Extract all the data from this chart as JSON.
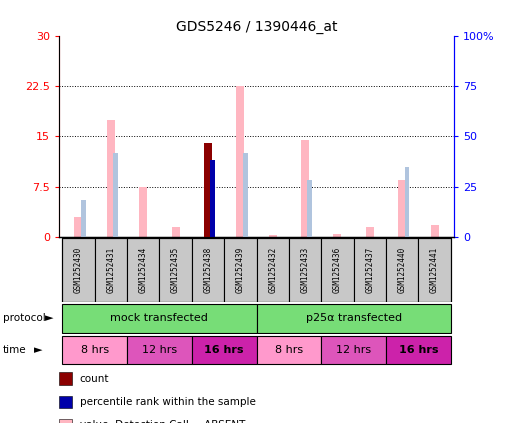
{
  "title": "GDS5246 / 1390446_at",
  "samples": [
    "GSM1252430",
    "GSM1252431",
    "GSM1252434",
    "GSM1252435",
    "GSM1252438",
    "GSM1252439",
    "GSM1252432",
    "GSM1252433",
    "GSM1252436",
    "GSM1252437",
    "GSM1252440",
    "GSM1252441"
  ],
  "value_absent": [
    3.0,
    17.5,
    7.5,
    1.5,
    0.0,
    22.5,
    0.3,
    14.5,
    0.4,
    1.5,
    8.5,
    1.8
  ],
  "rank_absent": [
    5.5,
    12.5,
    0.0,
    0.0,
    0.0,
    12.5,
    0.0,
    8.5,
    0.0,
    0.0,
    10.5,
    0.0
  ],
  "count_val": [
    0.0,
    0.0,
    0.0,
    0.0,
    14.0,
    0.0,
    0.0,
    0.0,
    0.0,
    0.0,
    0.0,
    0.0
  ],
  "percentile_rank": [
    0.0,
    0.0,
    0.0,
    0.0,
    11.5,
    0.0,
    0.0,
    0.0,
    0.0,
    0.0,
    0.0,
    0.0
  ],
  "ylim": [
    0,
    30
  ],
  "yticks_left": [
    0,
    7.5,
    15,
    22.5,
    30
  ],
  "yticks_right": [
    0,
    25,
    50,
    75,
    100
  ],
  "yticklabels_right": [
    "0",
    "25",
    "50",
    "75",
    "100%"
  ],
  "color_value_absent": "#FFB6C1",
  "color_rank_absent": "#B0C4DE",
  "color_count": "#8B0000",
  "color_percentile": "#0000AA",
  "protocol_color": "#77DD77",
  "time_colors": [
    "#FF99CC",
    "#DD55BB",
    "#CC22AA"
  ],
  "time_labels": [
    "8 hrs",
    "12 hrs",
    "16 hrs"
  ],
  "sample_bg": "#C8C8C8",
  "bar_width": 0.25
}
